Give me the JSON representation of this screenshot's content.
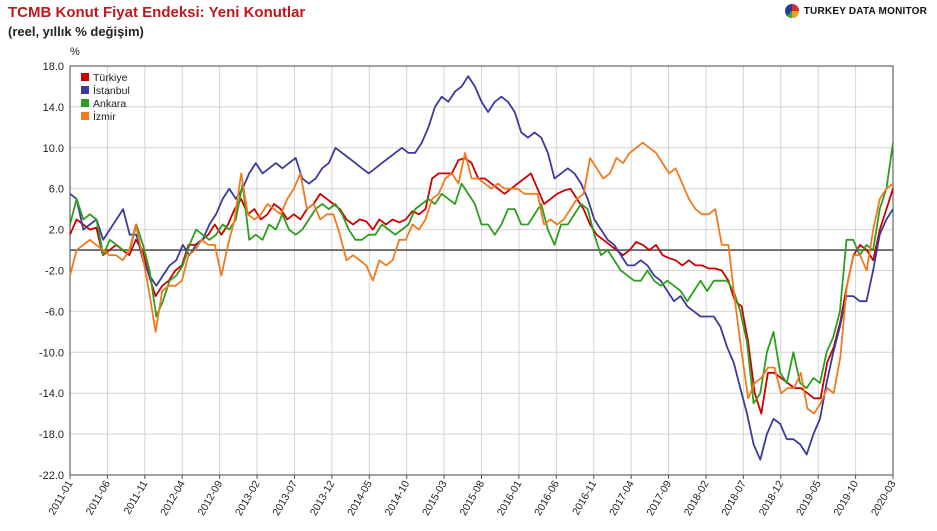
{
  "header": {
    "title": "TCMB Konut Fiyat Endeksi: Yeni Konutlar",
    "subtitle": "(reel, yıllık % değişim)",
    "brand": "TURKEY DATA MONITOR",
    "brand_logo_icon": "turkey-data-monitor-logo-icon"
  },
  "chart_data": {
    "type": "line",
    "ylabel": "%",
    "ylim": [
      -22,
      18
    ],
    "yticks": [
      18.0,
      14.0,
      10.0,
      6.0,
      2.0,
      -2.0,
      -6.0,
      -10.0,
      -14.0,
      -18.0,
      -22.0
    ],
    "ytick_labels": [
      "18.0",
      "14.0",
      "10.0",
      "6.0",
      "2.0",
      "-2.0",
      "-6.0",
      "-10.0",
      "-14.0",
      "-18.0",
      "-22.0"
    ],
    "xtick_labels": [
      "2011-01",
      "2011-06",
      "2011-11",
      "2012-04",
      "2012-09",
      "2013-02",
      "2013-07",
      "2013-12",
      "2014-05",
      "2014-10",
      "2015-03",
      "2015-08",
      "2016-01",
      "2016-06",
      "2016-11",
      "2017-04",
      "2017-09",
      "2018-02",
      "2018-07",
      "2018-12",
      "2019-05",
      "2019-10",
      "2020-03"
    ],
    "x_start": "2011-01",
    "x_end": "2020-03",
    "grid": true,
    "zero_line": true,
    "legend_position": "top-left",
    "series": [
      {
        "name": "Türkiye",
        "color": "#cc0000",
        "values": [
          1.5,
          3.0,
          2.5,
          2.0,
          2.2,
          -0.5,
          0.0,
          0.5,
          0.0,
          -0.5,
          1.0,
          0.0,
          -2.5,
          -4.5,
          -3.5,
          -3.0,
          -2.0,
          -1.5,
          0.5,
          0.5,
          1.0,
          1.5,
          2.5,
          1.5,
          2.5,
          4.0,
          5.0,
          3.5,
          4.0,
          3.0,
          3.5,
          4.5,
          4.0,
          3.0,
          3.5,
          3.0,
          4.0,
          4.5,
          5.5,
          5.0,
          4.5,
          4.0,
          3.0,
          2.5,
          3.0,
          2.8,
          2.0,
          3.0,
          2.5,
          3.0,
          2.7,
          3.0,
          3.8,
          3.5,
          4.0,
          7.0,
          7.5,
          7.5,
          7.5,
          8.8,
          9.0,
          8.5,
          7.0,
          7.0,
          6.5,
          6.0,
          5.5,
          6.0,
          6.5,
          7.0,
          7.5,
          6.0,
          4.5,
          5.0,
          5.5,
          5.8,
          6.0,
          5.0,
          4.0,
          2.5,
          1.5,
          1.0,
          0.5,
          0.0,
          -0.5,
          0.0,
          0.8,
          0.5,
          0.0,
          0.5,
          -0.5,
          -0.8,
          -1.0,
          -1.5,
          -1.0,
          -1.5,
          -1.5,
          -1.8,
          -1.8,
          -2.0,
          -3.0,
          -5.0,
          -5.5,
          -9.0,
          -14.0,
          -16.0,
          -12.0,
          -12.0,
          -12.5,
          -13.0,
          -13.5,
          -13.5,
          -14.0,
          -14.5,
          -14.5,
          -11.0,
          -9.5,
          -7.0,
          -3.5,
          -0.5,
          0.5,
          0.0,
          -1.0,
          2.0,
          4.0,
          6.0
        ]
      },
      {
        "name": "İstanbul",
        "color": "#3b3b9e",
        "values": [
          5.5,
          5.0,
          2.0,
          2.5,
          3.0,
          1.0,
          2.0,
          3.0,
          4.0,
          1.5,
          1.5,
          -1.0,
          -2.5,
          -3.5,
          -2.5,
          -1.5,
          -1.0,
          0.5,
          -0.5,
          0.5,
          1.0,
          2.5,
          3.5,
          5.0,
          6.0,
          5.0,
          6.0,
          7.5,
          8.5,
          7.5,
          8.0,
          8.5,
          8.0,
          8.5,
          9.0,
          7.0,
          6.5,
          7.0,
          8.0,
          8.5,
          10.0,
          9.5,
          9.0,
          8.5,
          8.0,
          7.5,
          8.0,
          8.5,
          9.0,
          9.5,
          10.0,
          9.5,
          9.5,
          10.5,
          12.0,
          14.0,
          15.0,
          14.5,
          15.5,
          16.0,
          17.0,
          16.0,
          14.5,
          13.5,
          14.5,
          15.0,
          14.5,
          13.5,
          11.5,
          11.0,
          11.5,
          11.0,
          9.5,
          7.0,
          7.5,
          8.0,
          7.5,
          6.5,
          5.0,
          3.0,
          2.0,
          1.0,
          0.5,
          -0.5,
          -1.5,
          -1.5,
          -1.0,
          -1.5,
          -2.5,
          -3.0,
          -4.0,
          -5.0,
          -4.5,
          -5.5,
          -6.0,
          -6.5,
          -6.5,
          -6.5,
          -7.5,
          -9.5,
          -11.0,
          -13.5,
          -16.0,
          -19.0,
          -20.5,
          -18.0,
          -16.5,
          -17.0,
          -18.5,
          -18.5,
          -19.0,
          -20.0,
          -18.0,
          -16.5,
          -13.0,
          -10.0,
          -7.5,
          -4.5,
          -4.5,
          -5.0,
          -5.0,
          -2.0,
          1.5,
          3.0,
          4.0
        ]
      },
      {
        "name": "Ankara",
        "color": "#2e9e1e",
        "values": [
          2.5,
          5.0,
          3.0,
          3.5,
          3.0,
          -0.5,
          1.0,
          0.5,
          0.0,
          0.0,
          2.5,
          0.5,
          -2.0,
          -6.5,
          -5.0,
          -3.0,
          -2.5,
          -1.5,
          0.5,
          2.0,
          1.5,
          1.0,
          1.5,
          2.5,
          2.0,
          3.0,
          6.5,
          1.0,
          1.5,
          1.0,
          2.5,
          2.0,
          3.5,
          2.0,
          1.5,
          2.0,
          3.0,
          4.0,
          4.5,
          4.0,
          4.5,
          3.5,
          2.0,
          1.0,
          1.0,
          1.5,
          1.5,
          2.5,
          2.0,
          1.5,
          2.0,
          2.5,
          4.0,
          4.5,
          5.0,
          4.5,
          5.5,
          5.0,
          4.5,
          6.5,
          5.5,
          4.5,
          2.5,
          2.5,
          1.5,
          2.5,
          4.0,
          4.0,
          2.5,
          2.5,
          3.5,
          4.5,
          2.0,
          0.5,
          2.5,
          2.5,
          3.5,
          4.5,
          4.0,
          1.5,
          -0.5,
          0.0,
          -1.0,
          -2.0,
          -2.5,
          -3.0,
          -3.0,
          -2.0,
          -3.0,
          -3.5,
          -3.0,
          -3.5,
          -4.0,
          -5.0,
          -4.0,
          -3.0,
          -4.0,
          -3.0,
          -3.0,
          -3.0,
          -4.0,
          -6.0,
          -9.0,
          -15.0,
          -14.0,
          -10.0,
          -8.0,
          -12.0,
          -13.0,
          -10.0,
          -13.0,
          -13.5,
          -12.5,
          -13.0,
          -10.0,
          -8.5,
          -6.0,
          1.0,
          1.0,
          -0.5,
          0.5,
          0.0,
          4.0,
          6.0,
          10.5
        ]
      },
      {
        "name": "İzmir",
        "color": "#f07a1e",
        "values": [
          -2.5,
          0.0,
          0.5,
          1.0,
          0.5,
          0.0,
          -0.5,
          -0.5,
          -1.0,
          0.0,
          2.5,
          -0.5,
          -4.0,
          -8.0,
          -4.0,
          -3.5,
          -3.5,
          -3.0,
          -0.5,
          0.0,
          1.0,
          0.5,
          0.5,
          -2.5,
          0.5,
          3.0,
          7.5,
          3.5,
          3.0,
          3.5,
          4.5,
          4.0,
          3.5,
          5.0,
          6.0,
          7.5,
          4.0,
          4.5,
          3.0,
          3.5,
          3.5,
          1.5,
          -1.0,
          -0.5,
          -1.0,
          -1.5,
          -3.0,
          -1.0,
          -1.5,
          -1.0,
          1.0,
          1.0,
          2.5,
          2.0,
          3.0,
          5.0,
          5.5,
          7.0,
          7.5,
          6.5,
          9.5,
          7.0,
          7.0,
          6.5,
          6.0,
          6.5,
          6.0,
          6.0,
          6.0,
          5.5,
          5.5,
          5.5,
          2.5,
          3.0,
          2.5,
          3.0,
          4.0,
          5.0,
          5.5,
          9.0,
          8.0,
          7.0,
          7.5,
          9.0,
          8.5,
          9.5,
          10.0,
          10.5,
          10.0,
          9.5,
          8.5,
          7.5,
          8.0,
          6.5,
          5.0,
          4.0,
          3.5,
          3.5,
          4.0,
          0.5,
          0.5,
          -5.0,
          -10.0,
          -14.5,
          -13.0,
          -12.5,
          -11.5,
          -11.5,
          -14.0,
          -13.5,
          -13.5,
          -12.0,
          -15.5,
          -16.0,
          -15.0,
          -13.5,
          -14.0,
          -10.5,
          -3.5,
          -0.5,
          -0.5,
          -2.0,
          2.0,
          5.0,
          6.0,
          6.5
        ]
      }
    ]
  }
}
